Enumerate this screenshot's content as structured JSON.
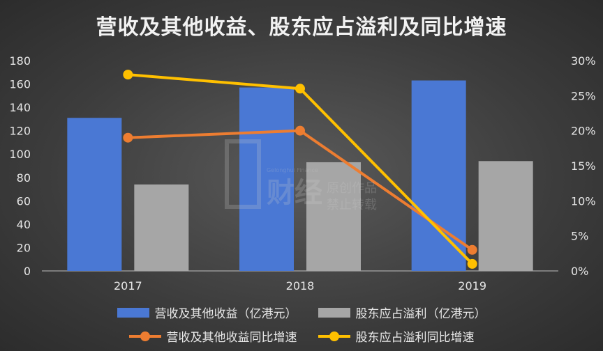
{
  "chart_data": {
    "type": "bar",
    "title": "营收及其他收益、股东应占溢利及同比增速",
    "categories": [
      "2017",
      "2018",
      "2019"
    ],
    "series": [
      {
        "name": "营收及其他收益（亿港元）",
        "kind": "bar",
        "axis": "left",
        "color": "#4a78d4",
        "values": [
          131,
          157,
          163
        ]
      },
      {
        "name": "股东应占溢利（亿港元）",
        "kind": "bar",
        "axis": "left",
        "color": "#a6a6a6",
        "values": [
          74,
          93,
          94
        ]
      },
      {
        "name": "营收及其他收益同比增速",
        "kind": "line",
        "axis": "right",
        "color": "#ed7d31",
        "values": [
          0.19,
          0.2,
          0.03
        ]
      },
      {
        "name": "股东应占溢利同比增速",
        "kind": "line",
        "axis": "right",
        "color": "#ffc000",
        "values": [
          0.28,
          0.26,
          0.01
        ]
      }
    ],
    "y_left": {
      "ylim": [
        0,
        180
      ],
      "ticks": [
        "0",
        "20",
        "40",
        "60",
        "80",
        "100",
        "120",
        "140",
        "160",
        "180"
      ]
    },
    "y_right": {
      "ylim": [
        0,
        0.3
      ],
      "ticks": [
        "0%",
        "5%",
        "10%",
        "15%",
        "20%",
        "25%",
        "30%"
      ]
    },
    "grid": false,
    "legend": "bottom"
  },
  "watermark": {
    "brand": "财经",
    "tag": "Gelonghui Finance",
    "line1": "原创作品",
    "line2": "禁止转载"
  }
}
